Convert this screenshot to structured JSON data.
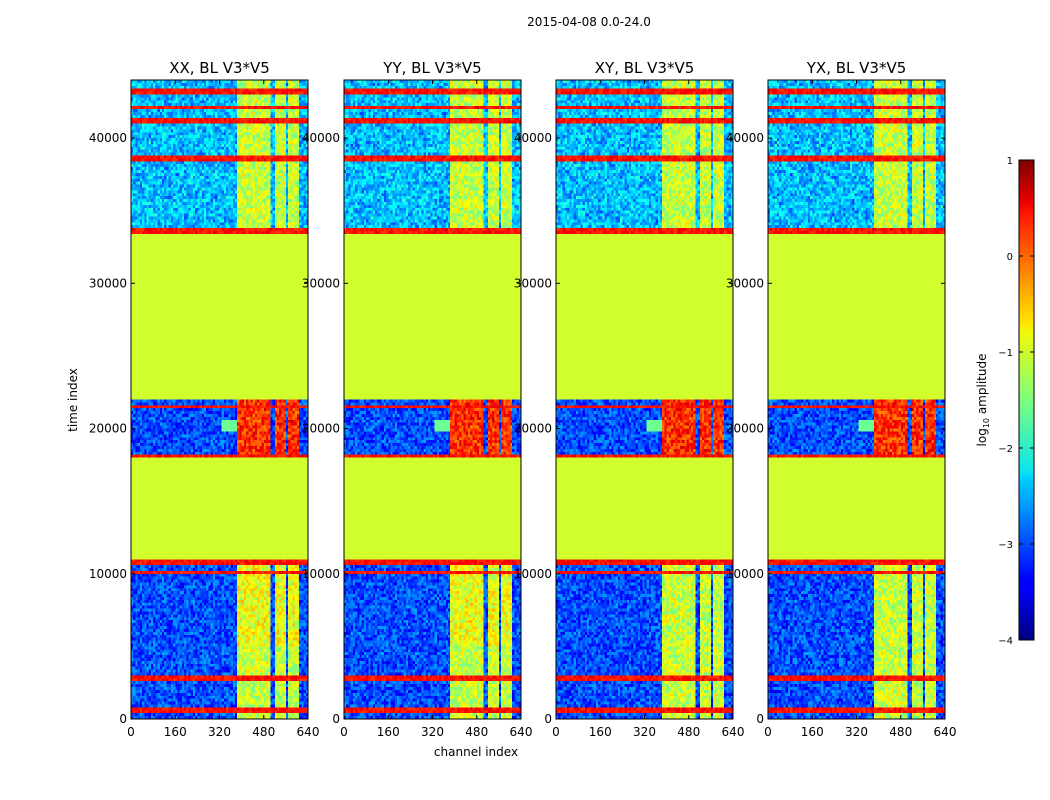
{
  "chart_data": {
    "type": "heatmap",
    "suptitle": "2015-04-08 0.0-24.0",
    "xlabel": "channel index",
    "ylabel": "time index",
    "xlim": [
      0,
      640
    ],
    "ylim": [
      0,
      44000
    ],
    "xticks": [
      0,
      160,
      320,
      480,
      640
    ],
    "yticks": [
      0,
      10000,
      20000,
      30000,
      40000
    ],
    "xtick_labels": [
      "0",
      "160",
      "320",
      "480",
      "640"
    ],
    "ytick_labels": [
      "0",
      "10000",
      "20000",
      "30000",
      "40000"
    ],
    "panels": [
      {
        "title": "XX, BL V3*V5",
        "pol": "XX"
      },
      {
        "title": "YY, BL V3*V5",
        "pol": "YY"
      },
      {
        "title": "XY, BL V3*V5",
        "pol": "XY"
      },
      {
        "title": "YX, BL V3*V5",
        "pol": "YX"
      }
    ],
    "flagged_time_ranges": [
      [
        11000,
        18000
      ],
      [
        22000,
        33500
      ]
    ],
    "flagged_value": -1.1,
    "active_channel_ranges": [
      [
        385,
        505
      ],
      [
        520,
        560
      ],
      [
        570,
        610
      ]
    ],
    "colorbar": {
      "label": "log",
      "label_sub": "10",
      "label_rest": " amplitude",
      "range": [
        -4,
        1
      ],
      "ticks": [
        1,
        0,
        -1,
        -2,
        -3,
        -4
      ],
      "tick_labels": [
        "1",
        "0",
        "−1",
        "−2",
        "−3",
        "−4"
      ],
      "colormap": "jet"
    }
  }
}
